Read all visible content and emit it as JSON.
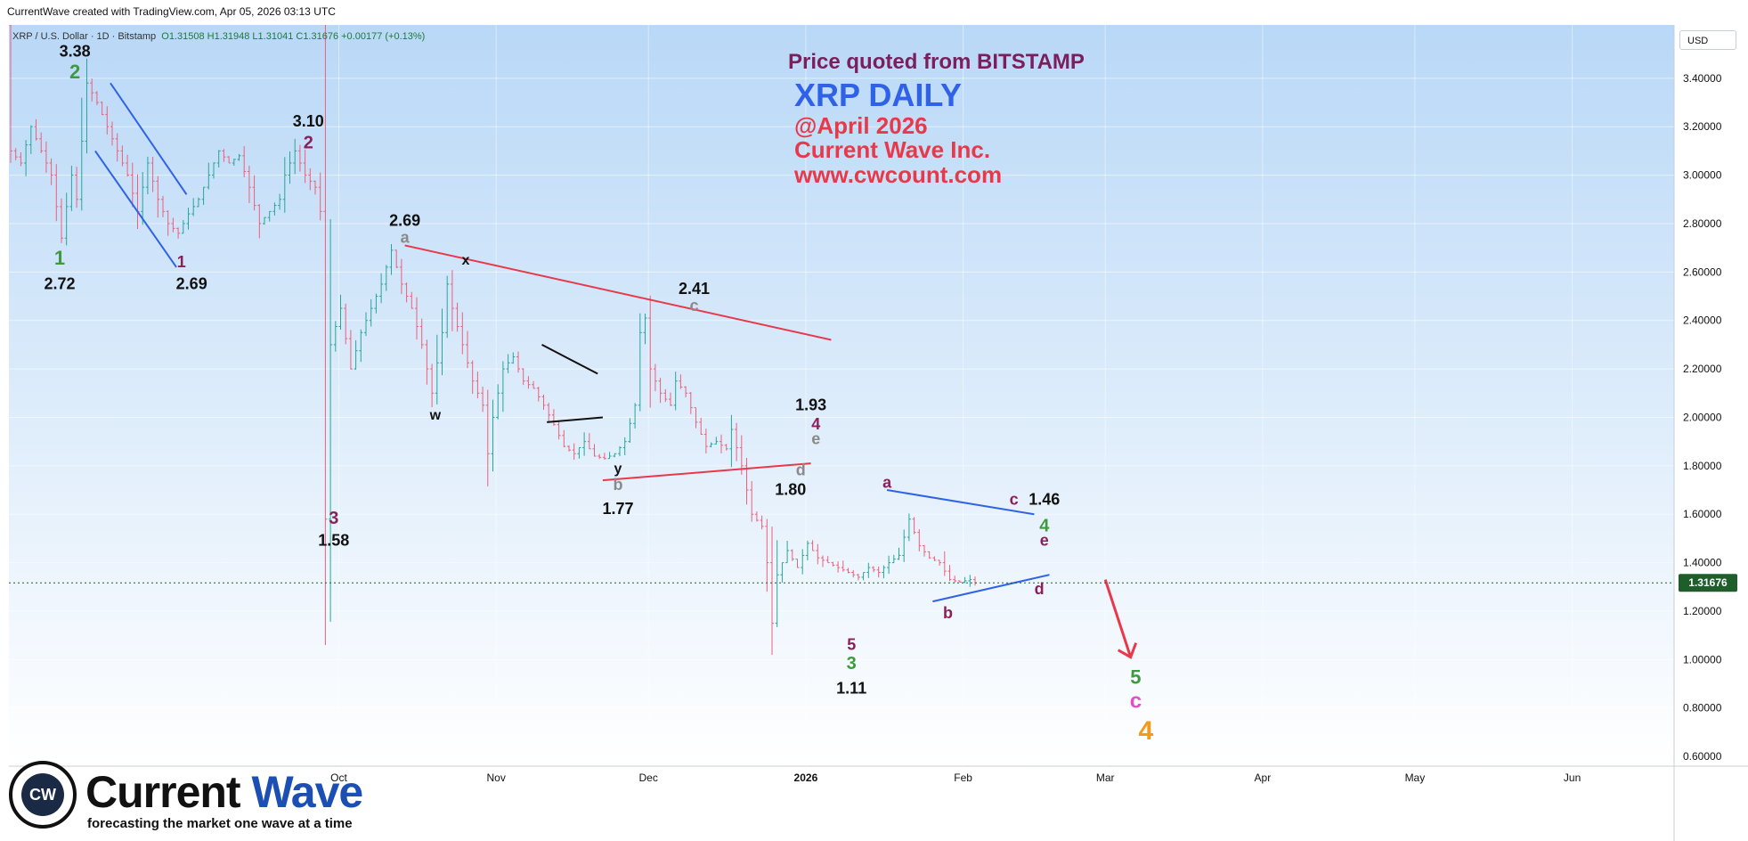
{
  "header": {
    "credit": "CurrentWave created with TradingView.com, Apr 05, 2026 03:13 UTC",
    "symbol": "XRP / U.S. Dollar · 1D · Bitstamp",
    "ohlc": "O1.31508 H1.31948 L1.31041 C1.31676 +0.00177 (+0.13%)",
    "currency": "USD"
  },
  "titles": {
    "source": "Price quoted from BITSTAMP",
    "main": "XRP DAILY",
    "date": "@April 2026",
    "company": "Current Wave Inc.",
    "url": "www.cwcount.com"
  },
  "logo": {
    "word_a": "Current ",
    "word_b": "Wave",
    "tagline": "forecasting the market one wave at a time",
    "badge": "CW"
  },
  "colors": {
    "bull": "#26a69a",
    "bear": "#ef5f7a",
    "bg_top": "#b9d8f7",
    "bg_bottom": "#ffffff",
    "red_line": "#e8394a",
    "blue_line": "#2f62e8",
    "wave_green": "#3e9a3e",
    "wave_maroon": "#8b1f5a",
    "wave_grey": "#8a8a8a",
    "wave_pink": "#e24fc2",
    "wave_orange": "#f39a1d",
    "price_badge": "#1d5e2a"
  },
  "chart_data": {
    "type": "candlestick",
    "title": "XRP DAILY",
    "ylim": [
      0.56,
      3.62
    ],
    "y_ticks": [
      "3.40000",
      "3.20000",
      "3.00000",
      "2.80000",
      "2.60000",
      "2.40000",
      "2.20000",
      "2.00000",
      "1.80000",
      "1.60000",
      "1.40000",
      "1.20000",
      "1.00000",
      "0.80000",
      "0.60000"
    ],
    "y_tick_values": [
      3.4,
      3.2,
      3.0,
      2.8,
      2.6,
      2.4,
      2.2,
      2.0,
      1.8,
      1.6,
      1.4,
      1.2,
      1.0,
      0.8,
      0.6
    ],
    "x_ticks": [
      {
        "label": "Oct",
        "day": 65
      },
      {
        "label": "Nov",
        "day": 96
      },
      {
        "label": "Dec",
        "day": 126
      },
      {
        "label": "2026",
        "day": 157
      },
      {
        "label": "Feb",
        "day": 188
      },
      {
        "label": "Mar",
        "day": 216
      },
      {
        "label": "Apr",
        "day": 247
      },
      {
        "label": "May",
        "day": 277
      },
      {
        "label": "Jun",
        "day": 308
      }
    ],
    "last_price": 1.31676,
    "last_price_label": "1.31676",
    "price_path": [
      [
        0,
        3.62
      ],
      [
        1,
        3.1
      ],
      [
        3,
        3.05
      ],
      [
        5,
        3.2
      ],
      [
        7,
        3.1
      ],
      [
        9,
        3.0
      ],
      [
        11,
        2.74
      ],
      [
        13,
        3.0
      ],
      [
        14,
        2.9
      ],
      [
        16,
        3.38
      ],
      [
        18,
        3.3
      ],
      [
        20,
        3.2
      ],
      [
        22,
        3.1
      ],
      [
        24,
        3.0
      ],
      [
        26,
        2.85
      ],
      [
        28,
        3.05
      ],
      [
        30,
        2.9
      ],
      [
        32,
        2.8
      ],
      [
        34,
        2.76
      ],
      [
        36,
        2.84
      ],
      [
        38,
        2.9
      ],
      [
        40,
        3.0
      ],
      [
        42,
        3.1
      ],
      [
        44,
        3.05
      ],
      [
        46,
        3.08
      ],
      [
        48,
        2.95
      ],
      [
        50,
        2.8
      ],
      [
        52,
        2.85
      ],
      [
        54,
        2.9
      ],
      [
        55,
        3.0
      ],
      [
        57,
        3.1
      ],
      [
        59,
        3.0
      ],
      [
        61,
        2.95
      ],
      [
        62,
        2.85
      ],
      [
        63,
        1.58
      ],
      [
        64,
        2.3
      ],
      [
        66,
        2.45
      ],
      [
        68,
        2.2
      ],
      [
        70,
        2.35
      ],
      [
        72,
        2.45
      ],
      [
        74,
        2.55
      ],
      [
        76,
        2.69
      ],
      [
        78,
        2.55
      ],
      [
        80,
        2.45
      ],
      [
        82,
        2.3
      ],
      [
        84,
        2.1
      ],
      [
        86,
        2.35
      ],
      [
        87,
        2.55
      ],
      [
        88,
        2.45
      ],
      [
        90,
        2.3
      ],
      [
        92,
        2.15
      ],
      [
        94,
        2.05
      ],
      [
        95,
        1.85
      ],
      [
        96,
        2.0
      ],
      [
        98,
        2.2
      ],
      [
        100,
        2.25
      ],
      [
        102,
        2.15
      ],
      [
        104,
        2.12
      ],
      [
        106,
        2.05
      ],
      [
        108,
        1.97
      ],
      [
        110,
        1.88
      ],
      [
        112,
        1.85
      ],
      [
        114,
        1.9
      ],
      [
        116,
        1.84
      ],
      [
        118,
        1.83
      ],
      [
        120,
        1.85
      ],
      [
        122,
        1.9
      ],
      [
        124,
        2.05
      ],
      [
        125,
        2.35
      ],
      [
        126,
        2.41
      ],
      [
        127,
        2.2
      ],
      [
        129,
        2.1
      ],
      [
        131,
        2.05
      ],
      [
        132,
        2.15
      ],
      [
        134,
        2.1
      ],
      [
        136,
        1.98
      ],
      [
        138,
        1.88
      ],
      [
        140,
        1.9
      ],
      [
        142,
        1.87
      ],
      [
        143,
        1.95
      ],
      [
        145,
        1.8
      ],
      [
        147,
        1.6
      ],
      [
        149,
        1.55
      ],
      [
        150,
        1.4
      ],
      [
        151,
        1.15
      ],
      [
        152,
        1.35
      ],
      [
        154,
        1.45
      ],
      [
        156,
        1.38
      ],
      [
        158,
        1.48
      ],
      [
        160,
        1.42
      ],
      [
        162,
        1.4
      ],
      [
        164,
        1.38
      ],
      [
        166,
        1.36
      ],
      [
        168,
        1.34
      ],
      [
        170,
        1.38
      ],
      [
        172,
        1.36
      ],
      [
        174,
        1.4
      ],
      [
        176,
        1.43
      ],
      [
        178,
        1.58
      ],
      [
        180,
        1.47
      ],
      [
        182,
        1.42
      ],
      [
        184,
        1.4
      ],
      [
        186,
        1.33
      ],
      [
        188,
        1.32
      ],
      [
        190,
        1.33
      ],
      [
        191,
        1.31676
      ]
    ],
    "x_of_day": {
      "d0": 10,
      "scale": 5.7
    },
    "annotations": [
      {
        "text": "3.38",
        "day": 13,
        "price": 3.49,
        "color": "#111"
      },
      {
        "text": "2",
        "day": 13,
        "price": 3.4,
        "color": "#3e9a3e",
        "size": 22
      },
      {
        "text": "1",
        "day": 10,
        "price": 2.63,
        "color": "#3e9a3e",
        "size": 22
      },
      {
        "text": "2.72",
        "day": 10,
        "price": 2.53,
        "color": "#111"
      },
      {
        "text": "1",
        "day": 34,
        "price": 2.62,
        "color": "#8b1f5a",
        "size": 18
      },
      {
        "text": "2.69",
        "day": 36,
        "price": 2.53,
        "color": "#111"
      },
      {
        "text": "3.10",
        "day": 59,
        "price": 3.2,
        "color": "#111"
      },
      {
        "text": "2",
        "day": 59,
        "price": 3.11,
        "color": "#8b1f5a",
        "size": 20
      },
      {
        "text": "3",
        "day": 64,
        "price": 1.56,
        "color": "#8b1f5a",
        "size": 20
      },
      {
        "text": "1.58",
        "day": 64,
        "price": 1.47,
        "color": "#111"
      },
      {
        "text": "2.69",
        "day": 78,
        "price": 2.79,
        "color": "#111"
      },
      {
        "text": "a",
        "day": 78,
        "price": 2.72,
        "color": "#8a8a8a",
        "size": 18
      },
      {
        "text": "x",
        "day": 90,
        "price": 2.63,
        "color": "#111",
        "size": 16
      },
      {
        "text": "w",
        "day": 84,
        "price": 1.99,
        "color": "#111",
        "size": 16
      },
      {
        "text": "y",
        "day": 120,
        "price": 1.77,
        "color": "#111",
        "size": 16
      },
      {
        "text": "b",
        "day": 120,
        "price": 1.7,
        "color": "#8a8a8a",
        "size": 18
      },
      {
        "text": "1.77",
        "day": 120,
        "price": 1.6,
        "color": "#111"
      },
      {
        "text": "2.41",
        "day": 135,
        "price": 2.51,
        "color": "#111"
      },
      {
        "text": "c",
        "day": 135,
        "price": 2.44,
        "color": "#8a8a8a",
        "size": 18
      },
      {
        "text": "1.93",
        "day": 158,
        "price": 2.03,
        "color": "#111"
      },
      {
        "text": "4",
        "day": 159,
        "price": 1.95,
        "color": "#8b1f5a",
        "size": 18
      },
      {
        "text": "e",
        "day": 159,
        "price": 1.89,
        "color": "#8a8a8a",
        "size": 18
      },
      {
        "text": "d",
        "day": 156,
        "price": 1.76,
        "color": "#8a8a8a",
        "size": 18
      },
      {
        "text": "1.80",
        "day": 154,
        "price": 1.68,
        "color": "#111"
      },
      {
        "text": "5",
        "day": 166,
        "price": 1.04,
        "color": "#8b1f5a",
        "size": 18
      },
      {
        "text": "3",
        "day": 166,
        "price": 0.96,
        "color": "#3e9a3e",
        "size": 20
      },
      {
        "text": "1.11",
        "day": 166,
        "price": 0.86,
        "color": "#111"
      },
      {
        "text": "a",
        "day": 173,
        "price": 1.71,
        "color": "#8b1f5a",
        "size": 18
      },
      {
        "text": "b",
        "day": 185,
        "price": 1.17,
        "color": "#8b1f5a",
        "size": 18
      },
      {
        "text": "c",
        "day": 198,
        "price": 1.64,
        "color": "#8b1f5a",
        "size": 18
      },
      {
        "text": "1.46",
        "day": 204,
        "price": 1.64,
        "color": "#111"
      },
      {
        "text": "4",
        "day": 204,
        "price": 1.53,
        "color": "#3e9a3e",
        "size": 20
      },
      {
        "text": "e",
        "day": 204,
        "price": 1.47,
        "color": "#8b1f5a",
        "size": 18
      },
      {
        "text": "d",
        "day": 203,
        "price": 1.27,
        "color": "#8b1f5a",
        "size": 18
      },
      {
        "text": "5",
        "day": 222,
        "price": 0.9,
        "color": "#3e9a3e",
        "size": 22
      },
      {
        "text": "c",
        "day": 222,
        "price": 0.8,
        "color": "#e24fc2",
        "size": 24
      },
      {
        "text": "4",
        "day": 224,
        "price": 0.67,
        "color": "#f39a1d",
        "size": 30
      }
    ],
    "trendlines": [
      {
        "from": [
          20,
          3.38
        ],
        "to": [
          35,
          2.92
        ],
        "color": "#2f62e8"
      },
      {
        "from": [
          17,
          3.1
        ],
        "to": [
          33,
          2.62
        ],
        "color": "#2f62e8"
      },
      {
        "from": [
          78,
          2.71
        ],
        "to": [
          162,
          2.32
        ],
        "color": "#e8394a"
      },
      {
        "from": [
          117,
          1.74
        ],
        "to": [
          158,
          1.81
        ],
        "color": "#e8394a"
      },
      {
        "from": [
          105,
          2.3
        ],
        "to": [
          116,
          2.18
        ],
        "color": "#111"
      },
      {
        "from": [
          106,
          1.98
        ],
        "to": [
          117,
          2.0
        ],
        "color": "#111"
      },
      {
        "from": [
          173,
          1.7
        ],
        "to": [
          202,
          1.6
        ],
        "color": "#2f62e8"
      },
      {
        "from": [
          182,
          1.24
        ],
        "to": [
          205,
          1.35
        ],
        "color": "#2f62e8"
      }
    ],
    "forecast_arrow": {
      "from": [
        216,
        1.33
      ],
      "to": [
        221,
        1.01
      ],
      "color": "#e8394a"
    }
  }
}
